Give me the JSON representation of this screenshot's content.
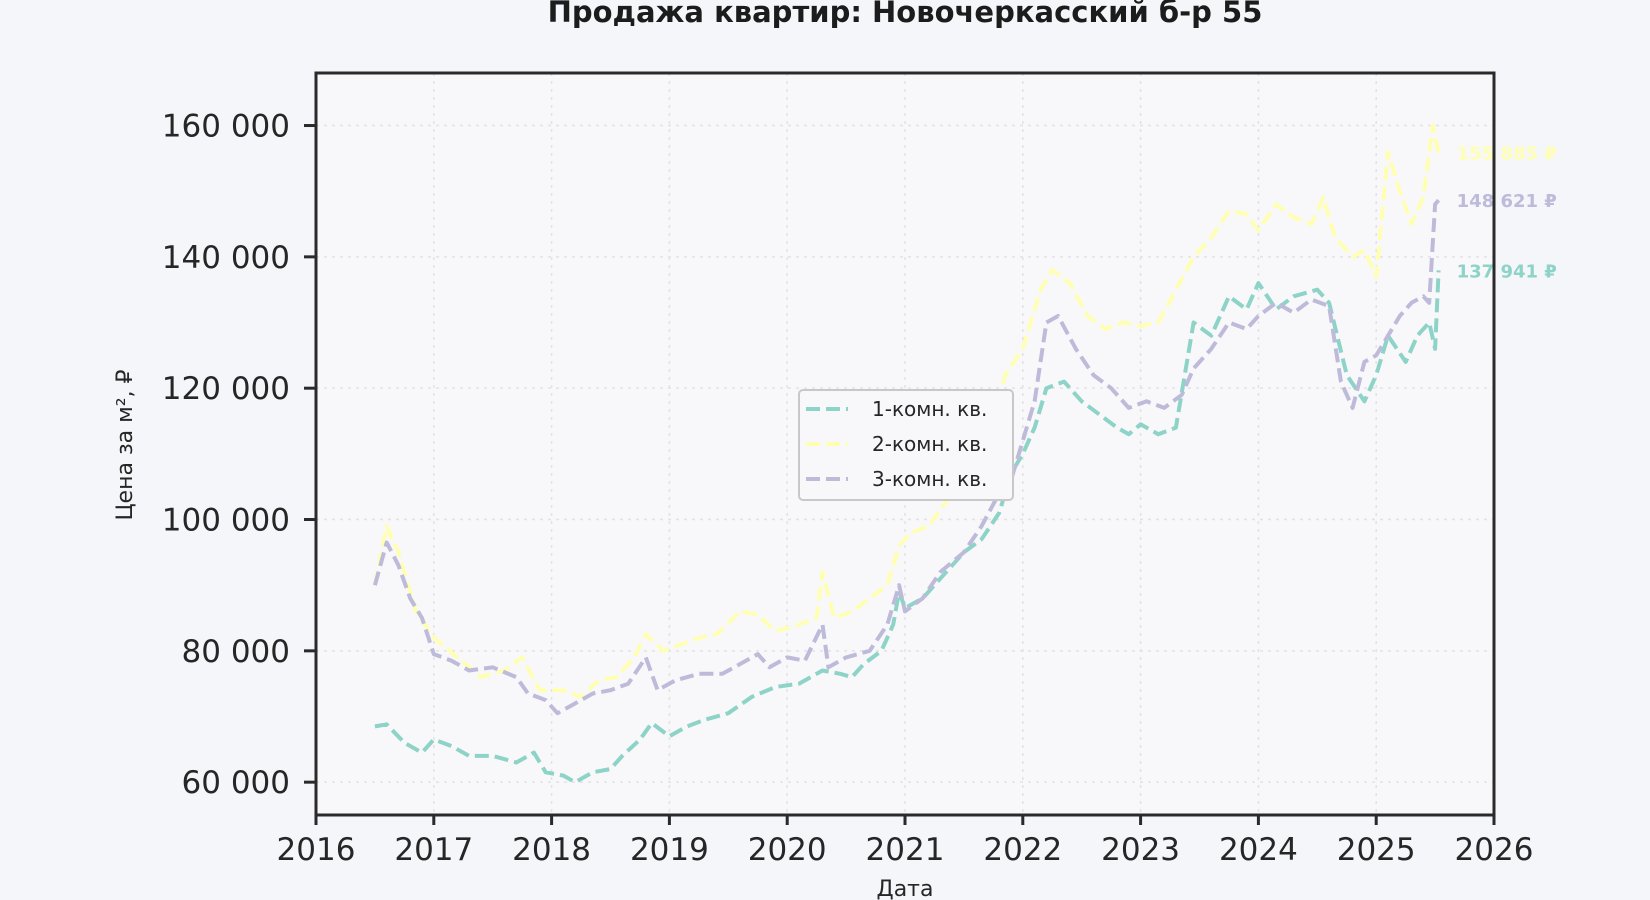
{
  "chart_data": {
    "type": "line",
    "title": "Продажа квартир: Новочеркасский б-р 55",
    "xlabel": "Дата",
    "ylabel": "Цена за м², ₽",
    "xlim": [
      2016,
      2026
    ],
    "ylim": [
      55000,
      168000
    ],
    "xticks": [
      2016,
      2017,
      2018,
      2019,
      2020,
      2021,
      2022,
      2023,
      2024,
      2025,
      2026
    ],
    "xtick_labels": [
      "2016",
      "2017",
      "2018",
      "2019",
      "2020",
      "2021",
      "2022",
      "2023",
      "2024",
      "2025",
      "2026"
    ],
    "yticks": [
      60000,
      80000,
      100000,
      120000,
      140000,
      160000
    ],
    "ytick_labels": [
      "60 000",
      "80 000",
      "100 000",
      "120 000",
      "140 000",
      "160 000"
    ],
    "grid": true,
    "legend_position": "center",
    "series": [
      {
        "name": "1-комн. кв.",
        "color": "#8dd3c7",
        "end_label": "137 941 ₽",
        "points": [
          [
            2016.5,
            68500
          ],
          [
            2016.6,
            68800
          ],
          [
            2016.75,
            66000
          ],
          [
            2016.9,
            64500
          ],
          [
            2017.0,
            66500
          ],
          [
            2017.15,
            65500
          ],
          [
            2017.3,
            64000
          ],
          [
            2017.5,
            64000
          ],
          [
            2017.7,
            63000
          ],
          [
            2017.85,
            64500
          ],
          [
            2017.95,
            61500
          ],
          [
            2018.1,
            61000
          ],
          [
            2018.2,
            60000
          ],
          [
            2018.35,
            61500
          ],
          [
            2018.5,
            62000
          ],
          [
            2018.6,
            64000
          ],
          [
            2018.75,
            66500
          ],
          [
            2018.85,
            69000
          ],
          [
            2019.0,
            67000
          ],
          [
            2019.15,
            68500
          ],
          [
            2019.3,
            69500
          ],
          [
            2019.5,
            70500
          ],
          [
            2019.7,
            73000
          ],
          [
            2019.9,
            74500
          ],
          [
            2020.1,
            75000
          ],
          [
            2020.3,
            77000
          ],
          [
            2020.45,
            76500
          ],
          [
            2020.55,
            76000
          ],
          [
            2020.65,
            78000
          ],
          [
            2020.8,
            80000
          ],
          [
            2020.9,
            84000
          ],
          [
            2020.95,
            89000
          ],
          [
            2021.0,
            86500
          ],
          [
            2021.15,
            88000
          ],
          [
            2021.3,
            91000
          ],
          [
            2021.5,
            95000
          ],
          [
            2021.65,
            97000
          ],
          [
            2021.8,
            101000
          ],
          [
            2021.9,
            107000
          ],
          [
            2022.0,
            110000
          ],
          [
            2022.1,
            114000
          ],
          [
            2022.2,
            120000
          ],
          [
            2022.35,
            121000
          ],
          [
            2022.5,
            118000
          ],
          [
            2022.65,
            116000
          ],
          [
            2022.8,
            114000
          ],
          [
            2022.9,
            113000
          ],
          [
            2023.0,
            114500
          ],
          [
            2023.15,
            113000
          ],
          [
            2023.3,
            114000
          ],
          [
            2023.45,
            130000
          ],
          [
            2023.6,
            128000
          ],
          [
            2023.75,
            134000
          ],
          [
            2023.9,
            132000
          ],
          [
            2024.0,
            136000
          ],
          [
            2024.15,
            132000
          ],
          [
            2024.3,
            134000
          ],
          [
            2024.5,
            135000
          ],
          [
            2024.6,
            133000
          ],
          [
            2024.75,
            122000
          ],
          [
            2024.9,
            118000
          ],
          [
            2025.0,
            122000
          ],
          [
            2025.1,
            128000
          ],
          [
            2025.25,
            124000
          ],
          [
            2025.35,
            128000
          ],
          [
            2025.45,
            130000
          ],
          [
            2025.5,
            126000
          ],
          [
            2025.53,
            137941
          ]
        ]
      },
      {
        "name": "2-комн. кв.",
        "color": "#ffffb3",
        "end_label": "155 885 ₽",
        "points": [
          [
            2016.5,
            90000
          ],
          [
            2016.6,
            99000
          ],
          [
            2016.7,
            95000
          ],
          [
            2016.85,
            86000
          ],
          [
            2017.0,
            82000
          ],
          [
            2017.2,
            79000
          ],
          [
            2017.4,
            76000
          ],
          [
            2017.6,
            77000
          ],
          [
            2017.75,
            79000
          ],
          [
            2017.9,
            74000
          ],
          [
            2018.1,
            74000
          ],
          [
            2018.25,
            73000
          ],
          [
            2018.4,
            75500
          ],
          [
            2018.55,
            76000
          ],
          [
            2018.7,
            79000
          ],
          [
            2018.8,
            82500
          ],
          [
            2018.95,
            80000
          ],
          [
            2019.1,
            81000
          ],
          [
            2019.25,
            82000
          ],
          [
            2019.4,
            82500
          ],
          [
            2019.6,
            86000
          ],
          [
            2019.75,
            85500
          ],
          [
            2019.9,
            83000
          ],
          [
            2020.1,
            84000
          ],
          [
            2020.25,
            85000
          ],
          [
            2020.3,
            92000
          ],
          [
            2020.4,
            85000
          ],
          [
            2020.55,
            86000
          ],
          [
            2020.7,
            88000
          ],
          [
            2020.85,
            90000
          ],
          [
            2020.95,
            96000
          ],
          [
            2021.05,
            98000
          ],
          [
            2021.2,
            99000
          ],
          [
            2021.4,
            104000
          ],
          [
            2021.55,
            107000
          ],
          [
            2021.7,
            112000
          ],
          [
            2021.85,
            122000
          ],
          [
            2022.0,
            126000
          ],
          [
            2022.15,
            135000
          ],
          [
            2022.25,
            138000
          ],
          [
            2022.4,
            136000
          ],
          [
            2022.55,
            131000
          ],
          [
            2022.7,
            129000
          ],
          [
            2022.85,
            130000
          ],
          [
            2023.0,
            129500
          ],
          [
            2023.15,
            130000
          ],
          [
            2023.3,
            135000
          ],
          [
            2023.45,
            140000
          ],
          [
            2023.6,
            143000
          ],
          [
            2023.75,
            147000
          ],
          [
            2023.9,
            146500
          ],
          [
            2024.0,
            144000
          ],
          [
            2024.15,
            148000
          ],
          [
            2024.3,
            146000
          ],
          [
            2024.45,
            145000
          ],
          [
            2024.55,
            149000
          ],
          [
            2024.65,
            143000
          ],
          [
            2024.8,
            140000
          ],
          [
            2024.9,
            141000
          ],
          [
            2025.0,
            137000
          ],
          [
            2025.1,
            156000
          ],
          [
            2025.2,
            150000
          ],
          [
            2025.3,
            145000
          ],
          [
            2025.4,
            149000
          ],
          [
            2025.48,
            160000
          ],
          [
            2025.53,
            155885
          ]
        ]
      },
      {
        "name": "3-комн. кв.",
        "color": "#bebada",
        "end_label": "148 621 ₽",
        "points": [
          [
            2016.5,
            90000
          ],
          [
            2016.6,
            96500
          ],
          [
            2016.7,
            93000
          ],
          [
            2016.8,
            88000
          ],
          [
            2016.9,
            85000
          ],
          [
            2017.0,
            79500
          ],
          [
            2017.15,
            78500
          ],
          [
            2017.3,
            77000
          ],
          [
            2017.5,
            77500
          ],
          [
            2017.7,
            76000
          ],
          [
            2017.8,
            73500
          ],
          [
            2017.95,
            72500
          ],
          [
            2018.05,
            70500
          ],
          [
            2018.2,
            72000
          ],
          [
            2018.35,
            73500
          ],
          [
            2018.5,
            74000
          ],
          [
            2018.65,
            75000
          ],
          [
            2018.8,
            79000
          ],
          [
            2018.9,
            74000
          ],
          [
            2019.05,
            75500
          ],
          [
            2019.25,
            76500
          ],
          [
            2019.45,
            76500
          ],
          [
            2019.6,
            78000
          ],
          [
            2019.75,
            79500
          ],
          [
            2019.85,
            77500
          ],
          [
            2020.0,
            79000
          ],
          [
            2020.15,
            78500
          ],
          [
            2020.3,
            84000
          ],
          [
            2020.35,
            77500
          ],
          [
            2020.5,
            79000
          ],
          [
            2020.7,
            80000
          ],
          [
            2020.85,
            84000
          ],
          [
            2020.95,
            90000
          ],
          [
            2021.0,
            86000
          ],
          [
            2021.15,
            88000
          ],
          [
            2021.3,
            92000
          ],
          [
            2021.5,
            95000
          ],
          [
            2021.65,
            99000
          ],
          [
            2021.8,
            104000
          ],
          [
            2021.9,
            106000
          ],
          [
            2022.0,
            112000
          ],
          [
            2022.1,
            118000
          ],
          [
            2022.2,
            130000
          ],
          [
            2022.3,
            131000
          ],
          [
            2022.45,
            126000
          ],
          [
            2022.6,
            122000
          ],
          [
            2022.75,
            120000
          ],
          [
            2022.9,
            117000
          ],
          [
            2023.05,
            118000
          ],
          [
            2023.2,
            117000
          ],
          [
            2023.35,
            119000
          ],
          [
            2023.45,
            123000
          ],
          [
            2023.6,
            126000
          ],
          [
            2023.75,
            130000
          ],
          [
            2023.9,
            129000
          ],
          [
            2024.0,
            131000
          ],
          [
            2024.15,
            133000
          ],
          [
            2024.3,
            131500
          ],
          [
            2024.45,
            133500
          ],
          [
            2024.6,
            132500
          ],
          [
            2024.7,
            121000
          ],
          [
            2024.8,
            117000
          ],
          [
            2024.9,
            124000
          ],
          [
            2025.0,
            125000
          ],
          [
            2025.1,
            128000
          ],
          [
            2025.2,
            131000
          ],
          [
            2025.3,
            133000
          ],
          [
            2025.4,
            134000
          ],
          [
            2025.45,
            133000
          ],
          [
            2025.5,
            148000
          ],
          [
            2025.53,
            148621
          ]
        ]
      }
    ]
  }
}
